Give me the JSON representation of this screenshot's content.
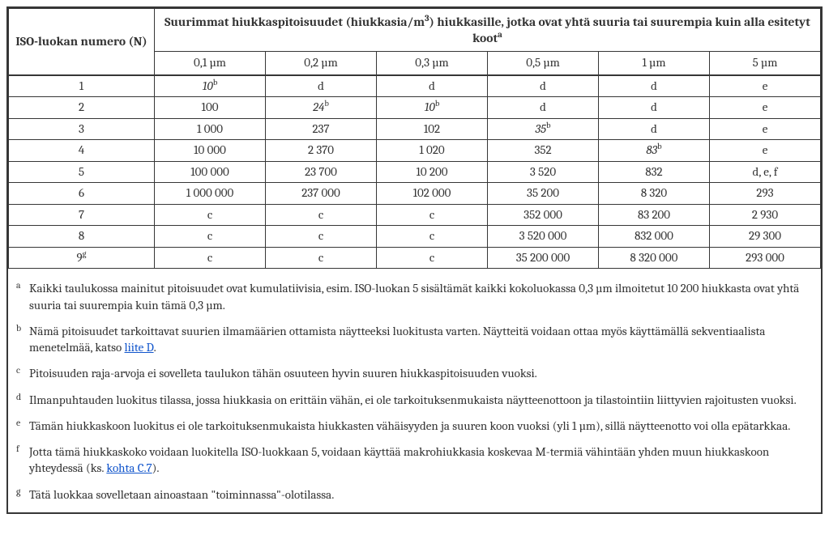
{
  "header": {
    "col1": "ISO-luokan numero (N)",
    "spanTitle_a": "Suurimmat hiukkaspitoisuudet (hiukkasia/m",
    "spanTitle_b": ") hiukkasille, jotka ovat yhtä suuria tai suurempia kuin alla esitetyt koot",
    "sizes": [
      "0,1 µm",
      "0,2 µm",
      "0,3 µm",
      "0,5 µm",
      "1 µm",
      "5 µm"
    ]
  },
  "rows": [
    {
      "n": "1",
      "c": [
        {
          "v": "10",
          "i": true,
          "s": "b"
        },
        {
          "v": "d"
        },
        {
          "v": "d"
        },
        {
          "v": "d"
        },
        {
          "v": "d"
        },
        {
          "v": "e"
        }
      ]
    },
    {
      "n": "2",
      "c": [
        {
          "v": "100"
        },
        {
          "v": "24",
          "i": true,
          "s": "b"
        },
        {
          "v": "10",
          "i": true,
          "s": "b"
        },
        {
          "v": "d"
        },
        {
          "v": "d"
        },
        {
          "v": "e"
        }
      ]
    },
    {
      "n": "3",
      "c": [
        {
          "v": "1 000"
        },
        {
          "v": "237"
        },
        {
          "v": "102"
        },
        {
          "v": "35",
          "i": true,
          "s": "b"
        },
        {
          "v": "d"
        },
        {
          "v": "e"
        }
      ]
    },
    {
      "n": "4",
      "c": [
        {
          "v": "10 000"
        },
        {
          "v": "2 370"
        },
        {
          "v": "1 020"
        },
        {
          "v": "352"
        },
        {
          "v": "83",
          "i": true,
          "s": "b"
        },
        {
          "v": "e"
        }
      ]
    },
    {
      "n": "5",
      "c": [
        {
          "v": "100 000"
        },
        {
          "v": "23 700"
        },
        {
          "v": "10 200"
        },
        {
          "v": "3 520"
        },
        {
          "v": "832"
        },
        {
          "v": "d, e, f"
        }
      ]
    },
    {
      "n": "6",
      "c": [
        {
          "v": "1 000 000"
        },
        {
          "v": "237 000"
        },
        {
          "v": "102 000"
        },
        {
          "v": "35 200"
        },
        {
          "v": "8 320"
        },
        {
          "v": "293"
        }
      ]
    },
    {
      "n": "7",
      "c": [
        {
          "v": "c"
        },
        {
          "v": "c"
        },
        {
          "v": "c"
        },
        {
          "v": "352 000"
        },
        {
          "v": "83 200"
        },
        {
          "v": "2 930"
        }
      ]
    },
    {
      "n": "8",
      "c": [
        {
          "v": "c"
        },
        {
          "v": "c"
        },
        {
          "v": "c"
        },
        {
          "v": "3 520 000"
        },
        {
          "v": "832 000"
        },
        {
          "v": "29 300"
        }
      ]
    },
    {
      "n": "9",
      "ns": "g",
      "c": [
        {
          "v": "c"
        },
        {
          "v": "c"
        },
        {
          "v": "c"
        },
        {
          "v": "35 200 000"
        },
        {
          "v": "8 320 000"
        },
        {
          "v": "293 000"
        }
      ]
    }
  ],
  "footnotes": {
    "a": {
      "pre": "Kaikki taulukossa mainitut pitoisuudet ovat kumulatiivisia, esim. ISO-luokan 5 sisältämät kaikki kokoluokassa 0,3 µm ilmoitetut 10 200 hiukkasta ovat yhtä suuria tai suurempia kuin tämä 0,3 µm."
    },
    "b": {
      "pre": "Nämä pitoisuudet tarkoittavat suurien ilmamäärien ottamista näytteeksi luokitusta varten. Näytteitä voidaan ottaa myös käyttämällä sekventiaalista menetelmää, katso ",
      "link": "liite D",
      "post": "."
    },
    "c": {
      "pre": "Pitoisuuden raja-arvoja ei sovelleta taulukon tähän osuuteen hyvin suuren hiukkaspitoisuuden vuoksi."
    },
    "d": {
      "pre": "Ilmanpuhtauden luokitus tilassa, jossa hiukkasia on erittäin vähän, ei ole tarkoituksenmukaista näytteenottoon ja tilastointiin liittyvien rajoitusten vuoksi."
    },
    "e": {
      "pre": "Tämän hiukkaskoon luokitus ei ole tarkoituksenmukaista hiukkasten vähäisyyden ja suuren koon vuoksi (yli 1 µm), sillä näytteenotto voi olla epätarkkaa."
    },
    "f": {
      "pre": "Jotta tämä hiukkaskoko voidaan luokitella ISO-luokkaan 5, voidaan käyttää makrohiukkasia koskevaa M-termiä vähintään yhden muun hiukkaskoon yhteydessä (ks. ",
      "link": "kohta C.7",
      "post": ")."
    },
    "g": {
      "pre": "Tätä luokkaa sovelletaan ainoastaan \"toiminnassa\"-olotilassa."
    }
  },
  "colors": {
    "text": "#333333",
    "border": "#363636",
    "link": "#1155cc",
    "background": "#ffffff"
  }
}
